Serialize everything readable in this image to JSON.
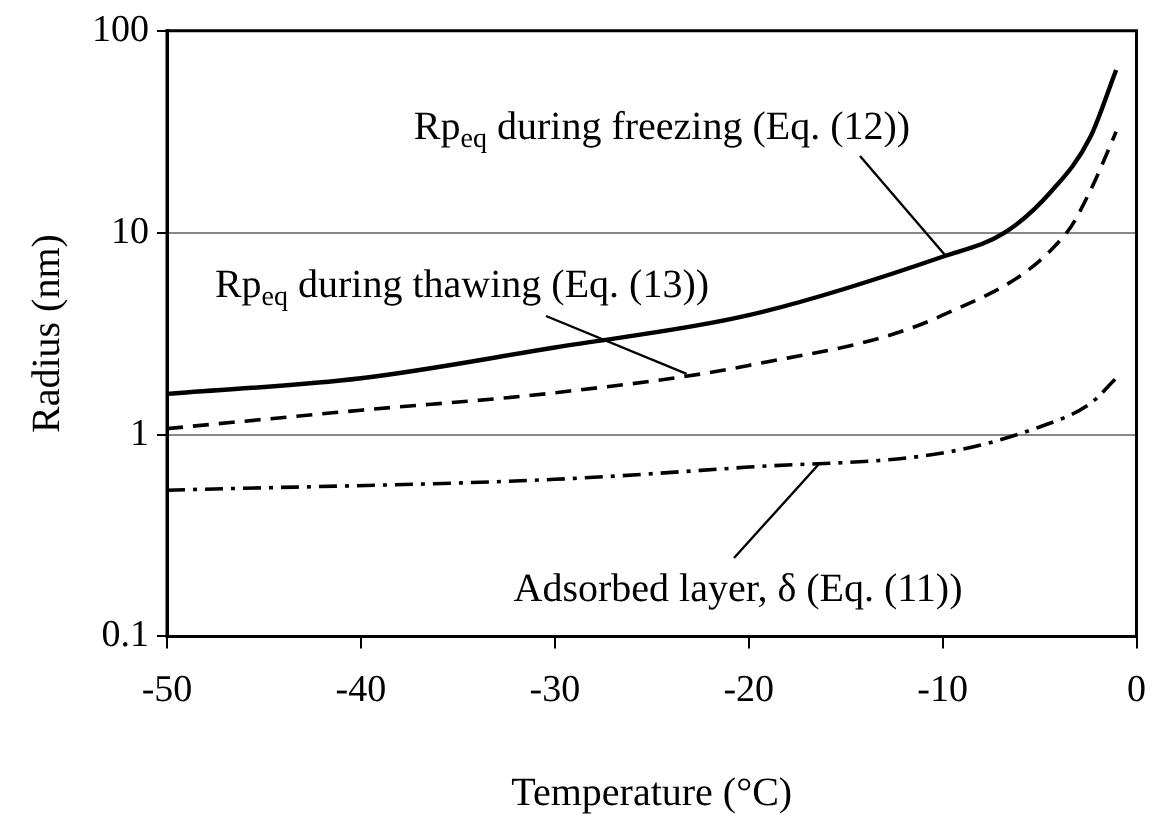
{
  "chart_data": {
    "type": "line",
    "xlabel": "Temperature (°C)",
    "ylabel": "Radius (nm)",
    "xlim": [
      -50,
      0
    ],
    "xticks": [
      -50,
      -40,
      -30,
      -20,
      -10,
      0
    ],
    "ylim": [
      0.1,
      100
    ],
    "yticks": [
      0.1,
      1,
      10,
      100
    ],
    "log": "y",
    "grid": "y",
    "legend": false,
    "marker": "none",
    "series": [
      {
        "color": "#000000",
        "line_style": "solid",
        "x": [
          -50,
          -40,
          -30,
          -20,
          -10,
          -6.8,
          -4.4,
          -2.4,
          -1.05
        ],
        "values": [
          1.59,
          1.9,
          2.7,
          3.9,
          7.6,
          10,
          16,
          29.5,
          64
        ]
      },
      {
        "color": "#000000",
        "line_style": "dashed",
        "x": [
          -50,
          -40,
          -30,
          -20,
          -10,
          -3.6,
          -2.4,
          -1.05
        ],
        "values": [
          1.07,
          1.32,
          1.61,
          2.2,
          3.9,
          10,
          16,
          31.6
        ]
      },
      {
        "color": "#000000",
        "line_style": "dashdot",
        "x": [
          -50,
          -30,
          -20,
          -10,
          -5,
          -2.4,
          -1.05
        ],
        "values": [
          0.53,
          0.6,
          0.69,
          0.81,
          1.09,
          1.42,
          1.9
        ]
      }
    ],
    "annotations": [
      {
        "text": "Rp$_{eq}$ during freezing (Eq. (12))",
        "x": -9.8,
        "y": 7.6
      },
      {
        "text": "Rp$_{eq}$ during thawing (Eq. (13))",
        "x": -23.2,
        "y": 2.0
      },
      {
        "text": "Adsorbed layer, δ (Eq. (11))",
        "x": -16.4,
        "y": 0.71
      }
    ]
  }
}
